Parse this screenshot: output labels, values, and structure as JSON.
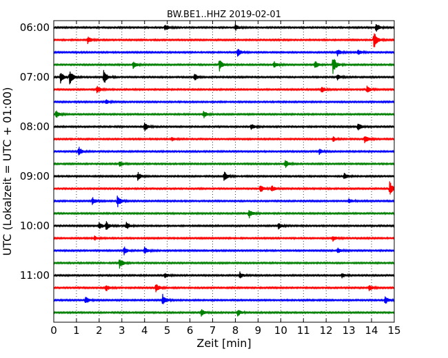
{
  "chart_data": {
    "type": "line",
    "title": "BW.BE1..HHZ 2019-02-01",
    "xlabel": "Zeit  [min]",
    "ylabel": "UTC (Lokalzeit = UTC + 01:00)",
    "xlim": [
      0,
      15
    ],
    "x_ticks": [
      "0",
      "1",
      "2",
      "3",
      "4",
      "5",
      "6",
      "7",
      "8",
      "9",
      "10",
      "11",
      "12",
      "13",
      "14",
      "15"
    ],
    "y_ticks": [
      {
        "label": "06:00",
        "row": 0
      },
      {
        "label": "07:00",
        "row": 4
      },
      {
        "label": "08:00",
        "row": 8
      },
      {
        "label": "09:00",
        "row": 12
      },
      {
        "label": "10:00",
        "row": 16
      },
      {
        "label": "11:00",
        "row": 20
      }
    ],
    "grid": "vertical-dotted",
    "trace_colors": [
      "#000000",
      "#ff0000",
      "#0000ff",
      "#008000"
    ],
    "series": [
      {
        "start": "06:00",
        "events": [
          [
            4.9,
            0.4
          ],
          [
            8.0,
            0.35
          ],
          [
            14.2,
            0.55
          ]
        ]
      },
      {
        "start": "06:15",
        "events": [
          [
            1.5,
            0.45
          ],
          [
            14.1,
            1.0
          ]
        ]
      },
      {
        "start": "06:30",
        "events": [
          [
            8.1,
            0.45
          ],
          [
            12.5,
            0.35
          ],
          [
            13.4,
            0.3
          ]
        ]
      },
      {
        "start": "06:45",
        "events": [
          [
            3.5,
            0.45
          ],
          [
            7.3,
            0.65
          ],
          [
            9.7,
            0.4
          ],
          [
            11.5,
            0.5
          ],
          [
            12.3,
            1.0
          ]
        ]
      },
      {
        "start": "07:00",
        "events": [
          [
            0.3,
            0.6
          ],
          [
            0.7,
            0.85
          ],
          [
            2.2,
            0.9
          ],
          [
            6.2,
            0.4
          ],
          [
            12.5,
            0.3
          ]
        ]
      },
      {
        "start": "07:15",
        "events": [
          [
            1.9,
            0.45
          ],
          [
            11.8,
            0.4
          ],
          [
            13.8,
            0.45
          ]
        ]
      },
      {
        "start": "07:30",
        "events": [
          [
            2.3,
            0.25
          ]
        ]
      },
      {
        "start": "07:45",
        "events": [
          [
            0.1,
            0.45
          ],
          [
            6.6,
            0.45
          ]
        ]
      },
      {
        "start": "08:00",
        "events": [
          [
            4.0,
            0.55
          ],
          [
            8.7,
            0.35
          ],
          [
            13.4,
            0.45
          ]
        ]
      },
      {
        "start": "08:15",
        "events": [
          [
            5.2,
            0.25
          ],
          [
            12.3,
            0.3
          ],
          [
            13.7,
            0.5
          ]
        ]
      },
      {
        "start": "08:30",
        "events": [
          [
            1.1,
            0.55
          ],
          [
            11.7,
            0.3
          ]
        ]
      },
      {
        "start": "08:45",
        "events": [
          [
            2.9,
            0.35
          ],
          [
            10.2,
            0.45
          ]
        ]
      },
      {
        "start": "09:00",
        "events": [
          [
            3.7,
            0.45
          ],
          [
            7.5,
            0.6
          ],
          [
            12.8,
            0.4
          ]
        ]
      },
      {
        "start": "09:15",
        "events": [
          [
            9.1,
            0.45
          ],
          [
            9.6,
            0.4
          ],
          [
            14.8,
            0.8
          ]
        ]
      },
      {
        "start": "09:30",
        "events": [
          [
            1.7,
            0.45
          ],
          [
            2.8,
            0.7
          ],
          [
            13.0,
            0.3
          ]
        ]
      },
      {
        "start": "09:45",
        "events": [
          [
            8.6,
            0.55
          ]
        ]
      },
      {
        "start": "10:00",
        "events": [
          [
            2.0,
            0.4
          ],
          [
            2.3,
            0.55
          ],
          [
            3.2,
            0.45
          ],
          [
            9.9,
            0.35
          ]
        ]
      },
      {
        "start": "10:15",
        "events": [
          [
            1.8,
            0.25
          ],
          [
            12.3,
            0.3
          ]
        ]
      },
      {
        "start": "10:30",
        "events": [
          [
            3.1,
            0.45
          ],
          [
            4.0,
            0.4
          ],
          [
            12.5,
            0.3
          ]
        ]
      },
      {
        "start": "10:45",
        "events": [
          [
            2.9,
            0.6
          ]
        ]
      },
      {
        "start": "11:00",
        "events": [
          [
            4.9,
            0.3
          ],
          [
            8.2,
            0.35
          ],
          [
            12.7,
            0.3
          ]
        ]
      },
      {
        "start": "11:15",
        "events": [
          [
            2.3,
            0.4
          ],
          [
            4.5,
            0.5
          ],
          [
            13.9,
            0.35
          ]
        ]
      },
      {
        "start": "11:30",
        "events": [
          [
            1.4,
            0.45
          ],
          [
            4.8,
            0.65
          ],
          [
            14.6,
            0.5
          ]
        ]
      },
      {
        "start": "11:45",
        "events": [
          [
            6.5,
            0.45
          ],
          [
            8.1,
            0.4
          ]
        ]
      }
    ]
  }
}
